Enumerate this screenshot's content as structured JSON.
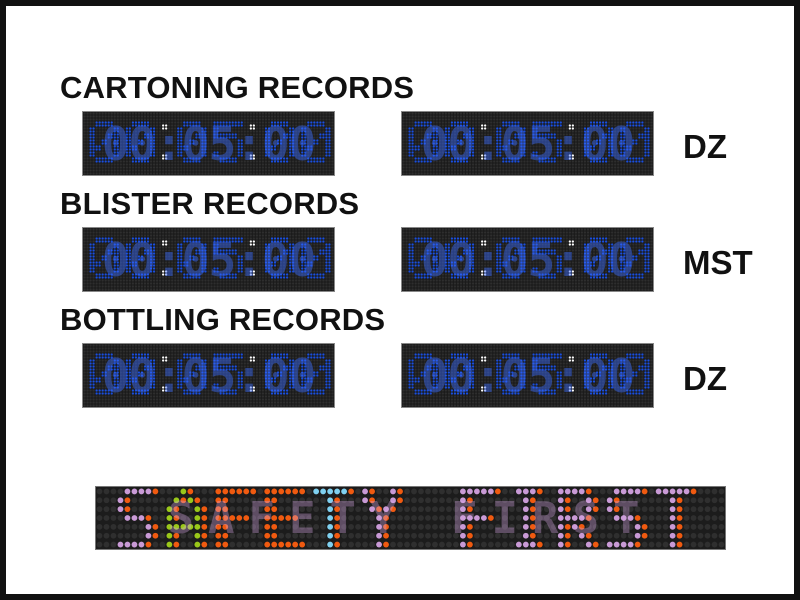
{
  "sections": [
    {
      "title": "CARTONING RECORDS",
      "timers": [
        "00:05:00",
        "00:05:00"
      ],
      "tag": "DZ"
    },
    {
      "title": "BLISTER RECORDS",
      "timers": [
        "00:05:00",
        "00:05:00"
      ],
      "tag": "MST"
    },
    {
      "title": "BOTTLING RECORDS",
      "timers": [
        "00:05:00",
        "00:05:00"
      ],
      "tag": "DZ"
    }
  ],
  "banner": {
    "text": "SAFETY FIRST",
    "letter_colors": [
      "#c99ad6",
      "#9ac81a",
      "#f05a10",
      "#f05a10",
      "#7fd0f0",
      "#c99ad6",
      "",
      "#c99ad6",
      "#c99ad6",
      "#c99ad6",
      "#c99ad6",
      "#c99ad6"
    ],
    "shadow_color": "#f05a10"
  },
  "colors": {
    "digit": "#1a4fe0",
    "colon": "#ffffff",
    "dot_off": "#2e2e2e"
  }
}
